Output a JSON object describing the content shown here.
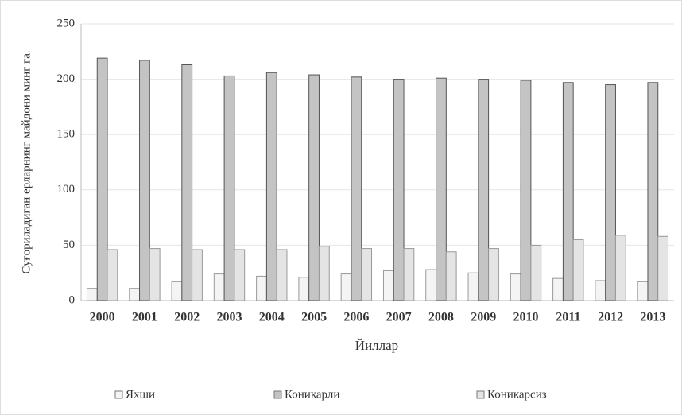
{
  "chart_data": {
    "type": "bar",
    "ylabel": "Суғориладиган ерларнинг майдони минг га.",
    "xlabel": "Йиллар",
    "categories": [
      "2000",
      "2001",
      "2002",
      "2003",
      "2004",
      "2005",
      "2006",
      "2007",
      "2008",
      "2009",
      "2010",
      "2011",
      "2012",
      "2013"
    ],
    "series": [
      {
        "name": "Яхши",
        "color": "#f4f4f4",
        "values": [
          11,
          11,
          17,
          24,
          22,
          21,
          24,
          27,
          28,
          25,
          24,
          20,
          18,
          17
        ]
      },
      {
        "name": "Коникарли",
        "color": "#c4c4c4",
        "values": [
          219,
          217,
          213,
          203,
          206,
          204,
          202,
          200,
          201,
          200,
          199,
          197,
          195,
          197
        ]
      },
      {
        "name": "Коникарсиз",
        "color": "#e4e4e4",
        "values": [
          46,
          47,
          46,
          46,
          46,
          49,
          47,
          47,
          44,
          47,
          50,
          55,
          59,
          58
        ]
      }
    ],
    "ylim": [
      0,
      250
    ],
    "yticks": [
      0,
      50,
      100,
      150,
      200,
      250
    ],
    "grid": true,
    "legend": "bottom"
  }
}
